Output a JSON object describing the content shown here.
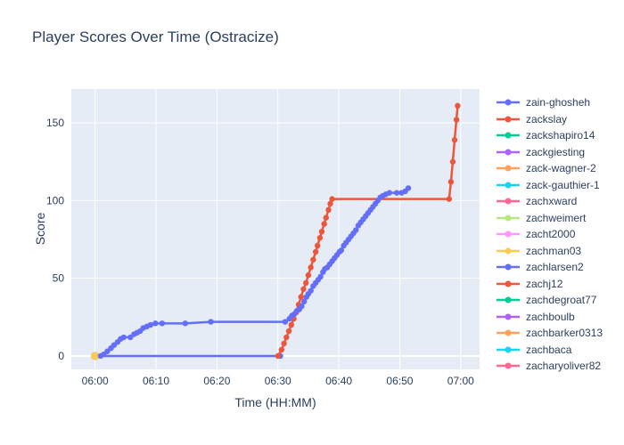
{
  "figure": {
    "title": "Player Scores Over Time (Ostracize)",
    "x_axis_label": "Time (HH:MM)",
    "y_axis_label": "Score"
  },
  "chart_data": {
    "type": "line",
    "title": "Player Scores Over Time (Ostracize)",
    "xlabel": "Time (HH:MM)",
    "ylabel": "Score",
    "x_unit": "minutes after 06:00",
    "x_tick_labels": [
      "06:00",
      "06:10",
      "06:20",
      "06:30",
      "06:40",
      "06:50",
      "07:00"
    ],
    "x_tick_minutes": [
      0,
      10,
      20,
      30,
      40,
      50,
      60
    ],
    "y_ticks": [
      0,
      50,
      100,
      150
    ],
    "x_range_minutes": [
      -3.9,
      63.1
    ],
    "y_range": [
      -8.6,
      171.8
    ],
    "background": "#E5ECF6",
    "grid_color": "#FFFFFF",
    "text_color": "#2a3f5f",
    "legend_position": "right",
    "grid": true,
    "series": [
      {
        "name": "zain-ghosheh",
        "color": "#636EFA",
        "mode": "lines+markers",
        "points": [
          [
            0,
            0
          ],
          [
            30.4,
            0
          ]
        ]
      },
      {
        "name": "zackslay",
        "color": "#EF553B",
        "mode": "lines+markers",
        "points": [
          [
            30,
            0
          ],
          [
            30.6,
            4
          ],
          [
            31,
            8
          ],
          [
            31.4,
            12
          ],
          [
            31.8,
            16
          ],
          [
            32.2,
            20
          ],
          [
            32.6,
            24
          ],
          [
            33,
            28
          ],
          [
            33.4,
            33
          ],
          [
            33.8,
            38
          ],
          [
            34.2,
            43
          ],
          [
            34.6,
            47
          ],
          [
            35,
            52
          ],
          [
            35.4,
            57
          ],
          [
            35.8,
            62
          ],
          [
            36.2,
            67
          ],
          [
            36.5,
            71
          ],
          [
            36.9,
            76
          ],
          [
            37.2,
            80
          ],
          [
            37.6,
            85
          ],
          [
            37.9,
            89
          ],
          [
            38.3,
            94
          ],
          [
            38.6,
            98
          ],
          [
            38.9,
            101
          ],
          [
            58.1,
            101
          ],
          [
            58.4,
            112
          ],
          [
            58.7,
            125
          ],
          [
            59,
            139
          ],
          [
            59.3,
            152
          ],
          [
            59.5,
            161
          ]
        ]
      },
      {
        "name": "zackshapiro14",
        "color": "#00CC96",
        "mode": "markers",
        "points": [
          [
            0,
            0
          ]
        ]
      },
      {
        "name": "zackgiesting",
        "color": "#AB63FA",
        "mode": "markers",
        "points": [
          [
            0,
            0
          ]
        ]
      },
      {
        "name": "zack-wagner-2",
        "color": "#FFA15A",
        "mode": "markers",
        "points": [
          [
            0,
            0
          ]
        ]
      },
      {
        "name": "zack-gauthier-1",
        "color": "#19D3F3",
        "mode": "markers",
        "points": [
          [
            0,
            0
          ]
        ]
      },
      {
        "name": "zachxward",
        "color": "#FF6692",
        "mode": "markers",
        "points": [
          [
            0,
            0
          ]
        ]
      },
      {
        "name": "zachweimert",
        "color": "#B6E880",
        "mode": "markers",
        "points": [
          [
            0,
            0
          ]
        ]
      },
      {
        "name": "zacht2000",
        "color": "#FF97FF",
        "mode": "markers",
        "points": [
          [
            0,
            0
          ]
        ]
      },
      {
        "name": "zachman03",
        "color": "#FECB52",
        "mode": "markers",
        "points": [
          [
            0,
            0
          ]
        ]
      },
      {
        "name": "zachlarsen2",
        "color": "#636EFA",
        "mode": "lines+markers",
        "points": [
          [
            0.9,
            0
          ],
          [
            1.4,
            1
          ],
          [
            2,
            3
          ],
          [
            2.6,
            5
          ],
          [
            3.1,
            7
          ],
          [
            3.7,
            9
          ],
          [
            4.2,
            11
          ],
          [
            4.7,
            12
          ],
          [
            5.8,
            12
          ],
          [
            6.4,
            14
          ],
          [
            6.9,
            15
          ],
          [
            7.4,
            16
          ],
          [
            7.9,
            18
          ],
          [
            8.5,
            19
          ],
          [
            9.1,
            20
          ],
          [
            9.9,
            21
          ],
          [
            11,
            21
          ],
          [
            14.8,
            21
          ],
          [
            19,
            22
          ],
          [
            31.2,
            22
          ],
          [
            31.9,
            24
          ],
          [
            32.3,
            26
          ],
          [
            32.7,
            27
          ],
          [
            33.1,
            29
          ],
          [
            33.5,
            30
          ],
          [
            33.9,
            32
          ],
          [
            34.3,
            35
          ],
          [
            34.7,
            38
          ],
          [
            35,
            40
          ],
          [
            35.4,
            42
          ],
          [
            35.8,
            45
          ],
          [
            36.2,
            47
          ],
          [
            36.6,
            49
          ],
          [
            37,
            51
          ],
          [
            37.4,
            54
          ],
          [
            37.7,
            56
          ],
          [
            38.1,
            57
          ],
          [
            38.5,
            59
          ],
          [
            38.9,
            61
          ],
          [
            39.3,
            63
          ],
          [
            39.7,
            65
          ],
          [
            40.1,
            67
          ],
          [
            40.4,
            68
          ],
          [
            40.8,
            71
          ],
          [
            41.2,
            73
          ],
          [
            41.6,
            75
          ],
          [
            42,
            77
          ],
          [
            42.4,
            79
          ],
          [
            42.8,
            81
          ],
          [
            43.2,
            84
          ],
          [
            43.6,
            86
          ],
          [
            44,
            88
          ],
          [
            44.4,
            90
          ],
          [
            44.8,
            92
          ],
          [
            45.2,
            94
          ],
          [
            45.6,
            96
          ],
          [
            46,
            98
          ],
          [
            46.4,
            100
          ],
          [
            46.8,
            102
          ],
          [
            47.2,
            103
          ],
          [
            47.7,
            104
          ],
          [
            48.3,
            105
          ],
          [
            49.5,
            105
          ],
          [
            50.3,
            105
          ],
          [
            50.9,
            106
          ],
          [
            51.4,
            108
          ]
        ]
      },
      {
        "name": "zachj12",
        "color": "#EF553B",
        "mode": "none",
        "points": []
      },
      {
        "name": "zachdegroat77",
        "color": "#00CC96",
        "mode": "none",
        "points": []
      },
      {
        "name": "zachboulb",
        "color": "#AB63FA",
        "mode": "none",
        "points": []
      },
      {
        "name": "zachbarker0313",
        "color": "#FFA15A",
        "mode": "none",
        "points": []
      },
      {
        "name": "zachbaca",
        "color": "#19D3F3",
        "mode": "none",
        "points": []
      },
      {
        "name": "zacharyoliver82",
        "color": "#FF6692",
        "mode": "none",
        "points": []
      }
    ]
  }
}
